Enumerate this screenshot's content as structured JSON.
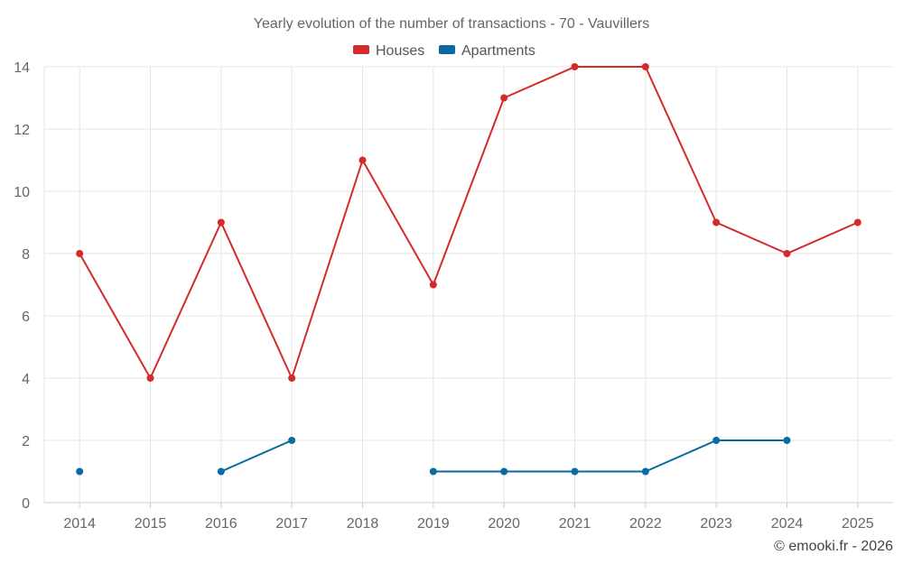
{
  "chart_data": {
    "type": "line",
    "title": "Yearly evolution of the number of transactions - 70 - Vauvillers",
    "categories": [
      "2014",
      "2015",
      "2016",
      "2017",
      "2018",
      "2019",
      "2020",
      "2021",
      "2022",
      "2023",
      "2024",
      "2025"
    ],
    "series": [
      {
        "name": "Houses",
        "color": "#d42a2a",
        "values": [
          8,
          4,
          9,
          4,
          11,
          7,
          13,
          14,
          14,
          9,
          8,
          9
        ]
      },
      {
        "name": "Apartments",
        "color": "#0a6aa1",
        "values": [
          1,
          null,
          1,
          2,
          null,
          1,
          1,
          1,
          1,
          2,
          2,
          null
        ]
      }
    ],
    "ylim": [
      0,
      14
    ],
    "yticks": [
      "0",
      "2",
      "4",
      "6",
      "8",
      "10",
      "12",
      "14"
    ],
    "xlabel": "",
    "ylabel": "",
    "grid": true,
    "legend_position": "top-center"
  },
  "credit": "© emooki.fr - 2026"
}
